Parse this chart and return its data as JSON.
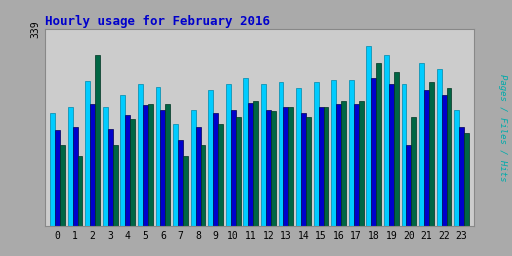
{
  "title": "Hourly usage for February 2016",
  "ylabel": "Pages / Files / Hits",
  "hours": [
    0,
    1,
    2,
    3,
    4,
    5,
    6,
    7,
    8,
    9,
    10,
    11,
    12,
    13,
    14,
    15,
    16,
    17,
    18,
    19,
    20,
    21,
    22,
    23
  ],
  "hits": [
    195,
    205,
    250,
    205,
    225,
    245,
    240,
    175,
    200,
    235,
    245,
    255,
    245,
    248,
    238,
    248,
    252,
    252,
    310,
    295,
    245,
    280,
    270,
    200
  ],
  "files": [
    165,
    170,
    210,
    168,
    192,
    208,
    200,
    148,
    170,
    195,
    200,
    212,
    200,
    205,
    195,
    205,
    210,
    210,
    255,
    245,
    140,
    235,
    225,
    170
  ],
  "pages": [
    140,
    120,
    295,
    140,
    185,
    210,
    210,
    120,
    140,
    175,
    188,
    215,
    198,
    205,
    188,
    205,
    215,
    215,
    280,
    265,
    188,
    248,
    238,
    160
  ],
  "color_hits": "#00ccff",
  "color_files": "#0000cc",
  "color_pages": "#006644",
  "background_plot": "#cccccc",
  "background_fig": "#aaaaaa",
  "title_color": "#0000cc",
  "ylabel_color": "#00aaaa",
  "max_val": 339,
  "bar_width": 0.28
}
